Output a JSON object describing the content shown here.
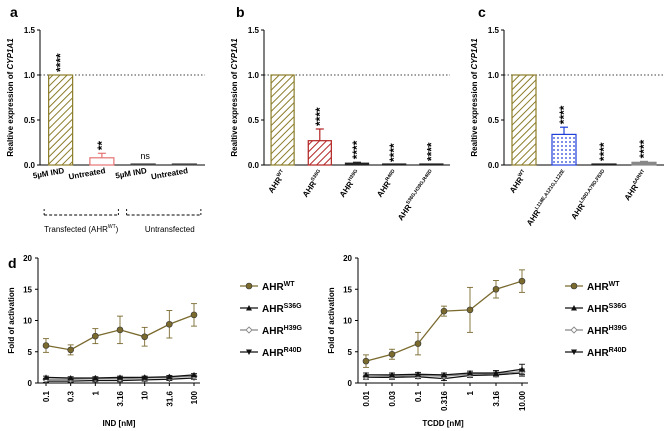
{
  "chart_data": [
    {
      "type": "bar",
      "panel": "a",
      "ylabel": "Realtive expression of CYP1A1",
      "ylim": [
        0,
        1.5
      ],
      "yticks": [
        "0.0",
        "0.5",
        "1.0",
        "1.5"
      ],
      "categories": [
        "5µM IND",
        "Untreated",
        "5µM IND",
        "Untreated"
      ],
      "values": [
        1.0,
        0.08,
        0.01,
        0.01
      ],
      "errors": [
        0.0,
        0.05,
        0.0,
        0.0
      ],
      "significance": [
        "****",
        "**",
        "ns",
        ""
      ],
      "colors": [
        "#8b7d2a",
        "#e57373",
        "#444444",
        "#444444"
      ],
      "groups": [
        "Transfected (AHR",
        "Untransfected"
      ],
      "group_sup": "WT",
      "group_close": ")"
    },
    {
      "type": "bar",
      "panel": "b",
      "ylabel": "Realtive expression of CYP1A1",
      "ylim": [
        0,
        1.5
      ],
      "yticks": [
        "0.0",
        "0.5",
        "1.0",
        "1.5"
      ],
      "categories": [
        "AHR",
        "AHR",
        "AHR",
        "AHR",
        "AHR"
      ],
      "category_sups": [
        "WT",
        "S36G",
        "H39G",
        "R40D",
        "S36G,H39G,R40D"
      ],
      "values": [
        1.0,
        0.27,
        0.02,
        0.0,
        0.01
      ],
      "errors": [
        0.0,
        0.13,
        0.01,
        0.0,
        0.0
      ],
      "significance": [
        "",
        "****",
        "****",
        "****",
        "****"
      ],
      "colors": [
        "#8b7d2a",
        "#b22222",
        "#222222",
        "#222222",
        "#222222"
      ]
    },
    {
      "type": "bar",
      "panel": "c",
      "ylabel": "Realtive expression of CYP1A1",
      "ylim": [
        0,
        1.5
      ],
      "yticks": [
        "0.0",
        "0.5",
        "1.0",
        "1.5"
      ],
      "categories": [
        "AHR",
        "AHR",
        "AHR",
        "AHR"
      ],
      "category_sups": [
        "WT",
        "L118E,A121G,L122E",
        "L50D,A79D,F83D",
        "∆ARNT"
      ],
      "values": [
        1.0,
        0.34,
        0.01,
        0.03
      ],
      "errors": [
        0.0,
        0.08,
        0.0,
        0.01
      ],
      "significance": [
        "",
        "****",
        "****",
        "****"
      ],
      "colors": [
        "#8b7d2a",
        "#1e3fd8",
        "#222222",
        "#888888"
      ]
    },
    {
      "type": "line",
      "panel": "d",
      "xlabel": "IND [nM]",
      "ylabel": "Fold of activation",
      "ylim": [
        0,
        20
      ],
      "yticks": [
        "0",
        "5",
        "10",
        "15",
        "20"
      ],
      "x": [
        "0.1",
        "0.3",
        "1",
        "3.16",
        "10",
        "31.6",
        "100"
      ],
      "series": [
        {
          "name": "AHR",
          "sup": "WT",
          "values": [
            6.0,
            5.3,
            7.5,
            8.5,
            7.4,
            9.4,
            10.9
          ],
          "errors": [
            1.1,
            0.8,
            1.2,
            2.2,
            1.5,
            2.2,
            1.8
          ],
          "color": "#7a6a2e",
          "marker": "circle"
        },
        {
          "name": "AHR",
          "sup": "S36G",
          "values": [
            0.9,
            0.8,
            0.8,
            0.9,
            0.9,
            1.0,
            1.3
          ],
          "errors": [
            0.2,
            0.2,
            0.2,
            0.2,
            0.2,
            0.2,
            0.2
          ],
          "color": "#111111",
          "marker": "triangle-up"
        },
        {
          "name": "AHR",
          "sup": "H39G",
          "values": [
            0.6,
            0.6,
            0.7,
            0.7,
            0.8,
            0.9,
            1.1
          ],
          "errors": [
            0.2,
            0.2,
            0.2,
            0.2,
            0.2,
            0.2,
            0.2
          ],
          "color": "#888888",
          "marker": "diamond"
        },
        {
          "name": "AHR",
          "sup": "R40D",
          "values": [
            0.3,
            0.3,
            0.4,
            0.4,
            0.5,
            0.6,
            0.8
          ],
          "errors": [
            0.2,
            0.2,
            0.2,
            0.2,
            0.2,
            0.2,
            0.2
          ],
          "color": "#111111",
          "marker": "triangle-down"
        }
      ]
    },
    {
      "type": "line",
      "panel": "",
      "xlabel": "TCDD [nM]",
      "ylabel": "Fold of activation",
      "ylim": [
        0,
        20
      ],
      "yticks": [
        "0",
        "5",
        "10",
        "15",
        "20"
      ],
      "x": [
        "0.01",
        "0.03",
        "0.1",
        "0.316",
        "1",
        "3.16",
        "10.00"
      ],
      "series": [
        {
          "name": "AHR",
          "sup": "WT",
          "values": [
            3.5,
            4.6,
            6.3,
            11.5,
            11.7,
            15.0,
            16.3
          ],
          "errors": [
            1.0,
            0.8,
            1.8,
            0.8,
            3.6,
            1.4,
            1.8
          ],
          "color": "#7a6a2e",
          "marker": "circle"
        },
        {
          "name": "AHR",
          "sup": "S36G",
          "values": [
            1.3,
            1.3,
            1.4,
            1.3,
            1.6,
            1.6,
            2.2
          ],
          "errors": [
            0.3,
            0.3,
            0.3,
            0.3,
            0.3,
            0.4,
            0.8
          ],
          "color": "#111111",
          "marker": "triangle-up"
        },
        {
          "name": "AHR",
          "sup": "H39G",
          "values": [
            1.0,
            1.1,
            1.2,
            1.1,
            1.4,
            1.5,
            1.8
          ],
          "errors": [
            0.3,
            0.3,
            0.3,
            0.3,
            0.3,
            0.3,
            0.5
          ],
          "color": "#888888",
          "marker": "diamond"
        },
        {
          "name": "AHR",
          "sup": "R40D",
          "values": [
            0.9,
            0.9,
            1.0,
            0.7,
            1.2,
            1.3,
            1.6
          ],
          "errors": [
            0.3,
            0.3,
            0.3,
            0.3,
            0.3,
            0.3,
            0.5
          ],
          "color": "#111111",
          "marker": "triangle-down"
        }
      ]
    }
  ]
}
